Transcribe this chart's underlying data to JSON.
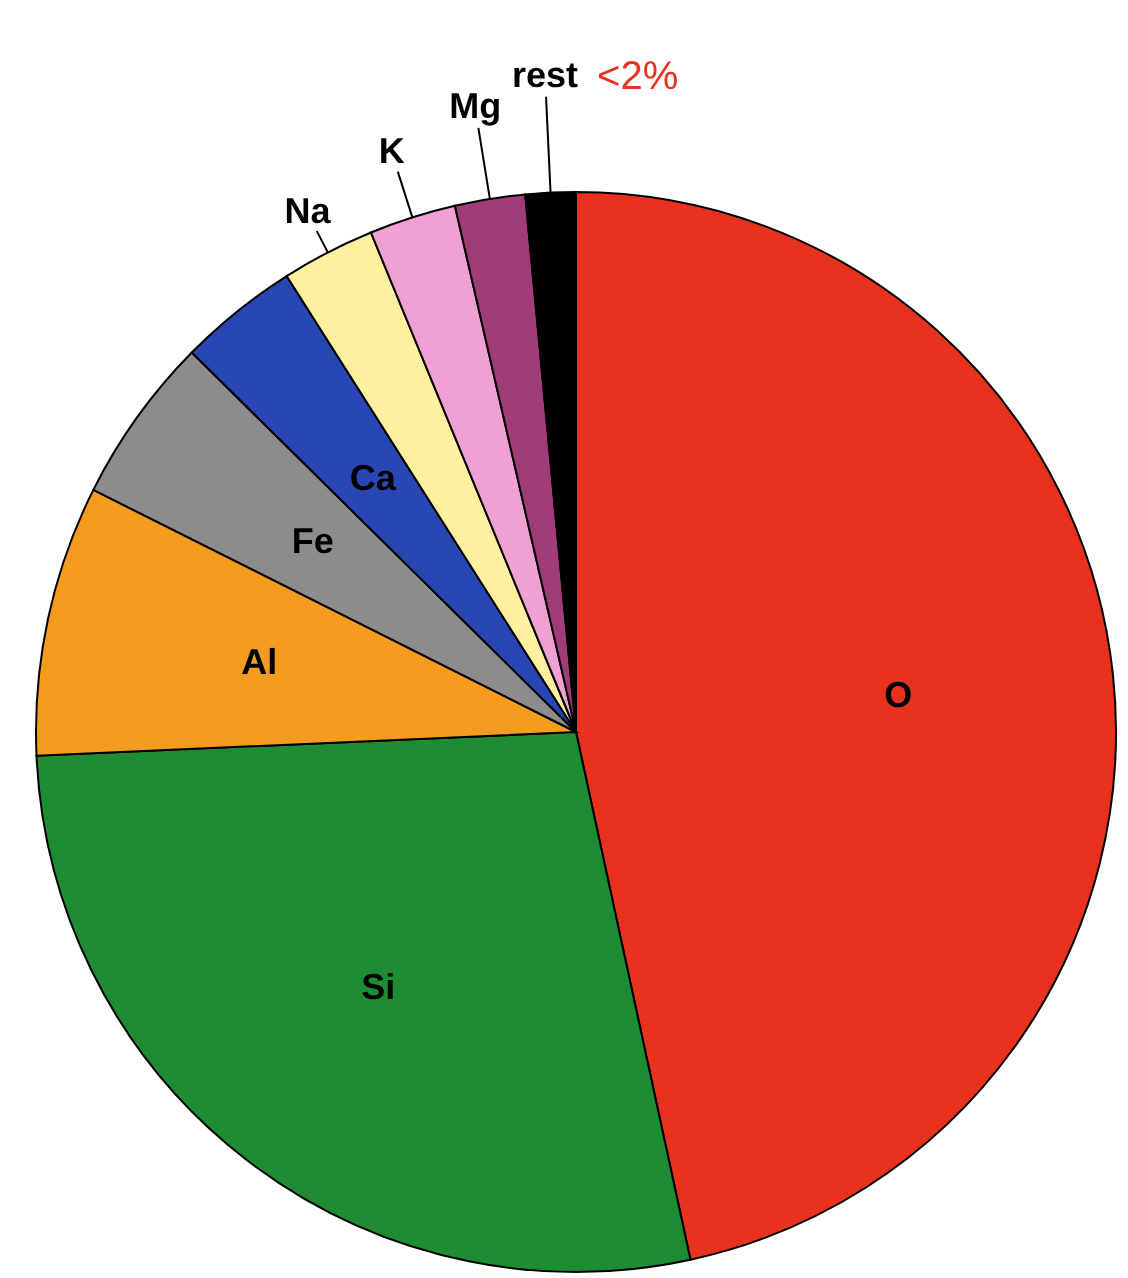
{
  "chart_data": {
    "type": "pie",
    "categories": [
      "O",
      "Si",
      "Al",
      "Fe",
      "Ca",
      "Na",
      "K",
      "Mg",
      "rest"
    ],
    "values": [
      46.6,
      27.7,
      8.1,
      5.0,
      3.6,
      2.8,
      2.6,
      2.1,
      1.5
    ],
    "colors": [
      "#e8321e",
      "#1e8c32",
      "#f59c1e",
      "#8c8c8c",
      "#2846b4",
      "#fff0a0",
      "#f0a0d2",
      "#a03c78",
      "#000000"
    ],
    "annotations": [
      "<2%"
    ]
  }
}
